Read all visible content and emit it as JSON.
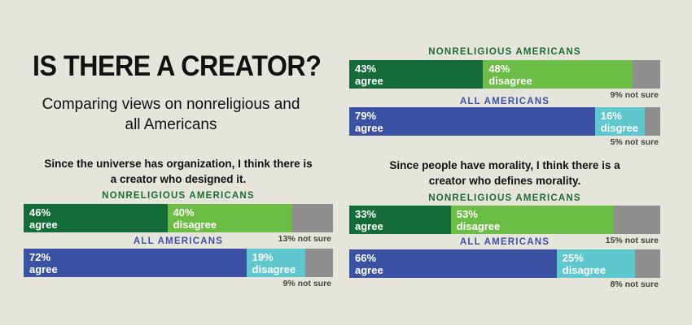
{
  "header": {
    "title": "IS THERE A CREATOR?",
    "subtitle": "Comparing views on nonreligious and all Americans"
  },
  "colors": {
    "background": "#e6e5dc",
    "nonreligious_agree": "#146c38",
    "nonreligious_disagree": "#6cbd45",
    "all_agree": "#3b52a4",
    "all_disagree": "#5ec8ce",
    "not_sure": "#8f8f8f",
    "nonreligious_label": "#1f6b34",
    "all_label": "#3b52a4"
  },
  "chart_data": [
    {
      "type": "bar",
      "title": "",
      "orientation": "horizontal-stacked",
      "series": [
        {
          "group": "NONRELIGIOUS AMERICANS",
          "agree": 43,
          "agree_label": "agree",
          "disagree": 48,
          "disagree_label": "disagree",
          "not_sure": 9,
          "not_sure_label": "9% not sure"
        },
        {
          "group": "ALL AMERICANS",
          "agree": 79,
          "agree_label": "agree",
          "disagree": 16,
          "disagree_label": "disgree",
          "not_sure": 5,
          "not_sure_label": "5% not sure"
        }
      ]
    },
    {
      "type": "bar",
      "title": "Since the universe has organization, I think there is a creator who designed it.",
      "orientation": "horizontal-stacked",
      "series": [
        {
          "group": "NONRELIGIOUS AMERICANS",
          "agree": 46,
          "agree_label": "agree",
          "disagree": 40,
          "disagree_label": "disagree",
          "not_sure": 13,
          "not_sure_label": "13% not sure"
        },
        {
          "group": "ALL AMERICANS",
          "agree": 72,
          "agree_label": "agree",
          "disagree": 19,
          "disagree_label": "disagree",
          "not_sure": 9,
          "not_sure_label": "9% not sure"
        }
      ]
    },
    {
      "type": "bar",
      "title": "Since people have morality, I think there is a creator who defines morality.",
      "orientation": "horizontal-stacked",
      "series": [
        {
          "group": "NONRELIGIOUS AMERICANS",
          "agree": 33,
          "agree_label": "agree",
          "disagree": 53,
          "disagree_label": "disagree",
          "not_sure": 15,
          "not_sure_label": "15% not sure"
        },
        {
          "group": "ALL AMERICANS",
          "agree": 66,
          "agree_label": "agree",
          "disagree": 25,
          "disagree_label": "disagree",
          "not_sure": 8,
          "not_sure_label": "8% not sure"
        }
      ]
    }
  ]
}
